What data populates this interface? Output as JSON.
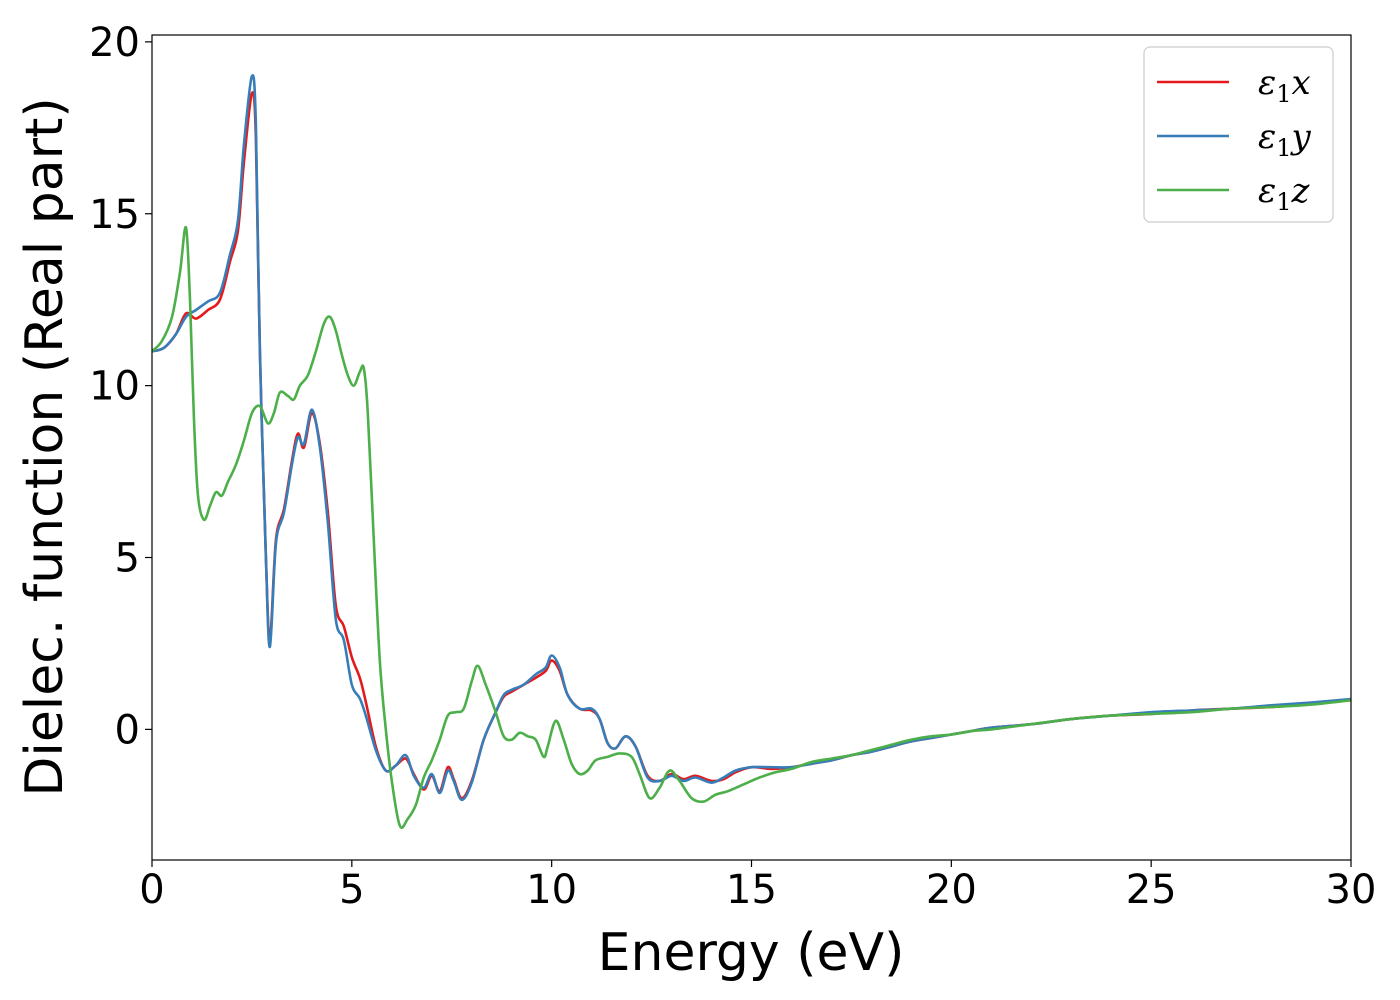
{
  "chart_data": {
    "type": "line",
    "title": "",
    "xlabel": "Energy (eV)",
    "ylabel": "Dielec. function (Real part)",
    "xlim": [
      0,
      30
    ],
    "ylim": [
      -3.8,
      20.2
    ],
    "xticks": [
      0,
      5,
      10,
      15,
      20,
      25,
      30
    ],
    "xtick_labels": [
      "0",
      "5",
      "10",
      "15",
      "20",
      "25",
      "30"
    ],
    "yticks": [
      0,
      5,
      10,
      15,
      20
    ],
    "ytick_labels": [
      "0",
      "5",
      "10",
      "15",
      "20"
    ],
    "grid": false,
    "legend_position": "top-right",
    "series": [
      {
        "name": "ε1x",
        "legend_base": "ε",
        "legend_sub": "1",
        "legend_var": "x",
        "color": "#e41a1c",
        "points": [
          [
            0,
            11
          ],
          [
            0.3,
            11.1
          ],
          [
            0.6,
            11.5
          ],
          [
            0.85,
            12.1
          ],
          [
            1.1,
            11.95
          ],
          [
            1.4,
            12.2
          ],
          [
            1.7,
            12.5
          ],
          [
            1.95,
            13.6
          ],
          [
            2.15,
            14.5
          ],
          [
            2.3,
            16.5
          ],
          [
            2.5,
            18.5
          ],
          [
            2.6,
            17.2
          ],
          [
            2.7,
            11
          ],
          [
            2.85,
            5
          ],
          [
            2.95,
            2.6
          ],
          [
            3.1,
            5.5
          ],
          [
            3.3,
            6.4
          ],
          [
            3.5,
            7.8
          ],
          [
            3.65,
            8.6
          ],
          [
            3.8,
            8.2
          ],
          [
            4.0,
            9.2
          ],
          [
            4.2,
            8.3
          ],
          [
            4.4,
            6.3
          ],
          [
            4.6,
            3.6
          ],
          [
            4.8,
            3.0
          ],
          [
            5.0,
            2.1
          ],
          [
            5.2,
            1.5
          ],
          [
            5.35,
            0.8
          ],
          [
            5.6,
            -0.5
          ],
          [
            5.85,
            -1.2
          ],
          [
            6.1,
            -1.05
          ],
          [
            6.35,
            -0.85
          ],
          [
            6.55,
            -1.3
          ],
          [
            6.8,
            -1.75
          ],
          [
            7.0,
            -1.35
          ],
          [
            7.2,
            -1.8
          ],
          [
            7.4,
            -1.1
          ],
          [
            7.55,
            -1.45
          ],
          [
            7.75,
            -2.0
          ],
          [
            8.0,
            -1.5
          ],
          [
            8.3,
            -0.3
          ],
          [
            8.6,
            0.5
          ],
          [
            8.8,
            0.95
          ],
          [
            9.0,
            1.1
          ],
          [
            9.3,
            1.3
          ],
          [
            9.6,
            1.5
          ],
          [
            9.85,
            1.7
          ],
          [
            10.0,
            2.0
          ],
          [
            10.2,
            1.7
          ],
          [
            10.4,
            1.0
          ],
          [
            10.7,
            0.6
          ],
          [
            11.0,
            0.55
          ],
          [
            11.2,
            0.3
          ],
          [
            11.4,
            -0.4
          ],
          [
            11.6,
            -0.55
          ],
          [
            11.85,
            -0.2
          ],
          [
            12.1,
            -0.5
          ],
          [
            12.4,
            -1.35
          ],
          [
            12.7,
            -1.5
          ],
          [
            13.0,
            -1.3
          ],
          [
            13.3,
            -1.45
          ],
          [
            13.6,
            -1.35
          ],
          [
            14.0,
            -1.5
          ],
          [
            14.3,
            -1.45
          ],
          [
            14.6,
            -1.25
          ],
          [
            15.0,
            -1.1
          ],
          [
            15.5,
            -1.15
          ],
          [
            16.0,
            -1.1
          ],
          [
            16.5,
            -1.0
          ],
          [
            17.0,
            -0.9
          ],
          [
            17.5,
            -0.75
          ],
          [
            18.0,
            -0.65
          ],
          [
            18.5,
            -0.5
          ],
          [
            19.0,
            -0.35
          ],
          [
            19.5,
            -0.25
          ],
          [
            20.0,
            -0.15
          ],
          [
            20.5,
            -0.05
          ],
          [
            21.0,
            0.05
          ],
          [
            22.0,
            0.15
          ],
          [
            23.0,
            0.3
          ],
          [
            24.0,
            0.4
          ],
          [
            25.0,
            0.45
          ],
          [
            26.0,
            0.55
          ],
          [
            27.0,
            0.6
          ],
          [
            28.0,
            0.65
          ],
          [
            29.0,
            0.75
          ],
          [
            30.0,
            0.85
          ]
        ]
      },
      {
        "name": "ε1y",
        "legend_base": "ε",
        "legend_sub": "1",
        "legend_var": "y",
        "color": "#377eb8",
        "points": [
          [
            0,
            11
          ],
          [
            0.3,
            11.1
          ],
          [
            0.6,
            11.5
          ],
          [
            0.85,
            12.0
          ],
          [
            1.1,
            12.2
          ],
          [
            1.4,
            12.45
          ],
          [
            1.7,
            12.7
          ],
          [
            1.95,
            13.8
          ],
          [
            2.15,
            14.8
          ],
          [
            2.3,
            17.0
          ],
          [
            2.5,
            19.0
          ],
          [
            2.6,
            17.6
          ],
          [
            2.7,
            11
          ],
          [
            2.85,
            5
          ],
          [
            2.95,
            2.4
          ],
          [
            3.1,
            5.4
          ],
          [
            3.3,
            6.3
          ],
          [
            3.5,
            7.7
          ],
          [
            3.65,
            8.5
          ],
          [
            3.8,
            8.3
          ],
          [
            4.0,
            9.3
          ],
          [
            4.2,
            8.2
          ],
          [
            4.4,
            6.0
          ],
          [
            4.6,
            3.2
          ],
          [
            4.8,
            2.6
          ],
          [
            5.0,
            1.3
          ],
          [
            5.2,
            0.9
          ],
          [
            5.35,
            0.4
          ],
          [
            5.6,
            -0.6
          ],
          [
            5.85,
            -1.2
          ],
          [
            6.1,
            -1.05
          ],
          [
            6.35,
            -0.75
          ],
          [
            6.55,
            -1.35
          ],
          [
            6.8,
            -1.7
          ],
          [
            7.0,
            -1.3
          ],
          [
            7.2,
            -1.85
          ],
          [
            7.4,
            -1.2
          ],
          [
            7.55,
            -1.5
          ],
          [
            7.75,
            -2.05
          ],
          [
            8.0,
            -1.55
          ],
          [
            8.3,
            -0.3
          ],
          [
            8.6,
            0.5
          ],
          [
            8.8,
            1.0
          ],
          [
            9.0,
            1.15
          ],
          [
            9.3,
            1.3
          ],
          [
            9.6,
            1.6
          ],
          [
            9.85,
            1.8
          ],
          [
            10.0,
            2.15
          ],
          [
            10.2,
            1.8
          ],
          [
            10.4,
            1.0
          ],
          [
            10.7,
            0.6
          ],
          [
            11.0,
            0.6
          ],
          [
            11.2,
            0.3
          ],
          [
            11.4,
            -0.4
          ],
          [
            11.6,
            -0.55
          ],
          [
            11.85,
            -0.2
          ],
          [
            12.1,
            -0.5
          ],
          [
            12.4,
            -1.4
          ],
          [
            12.7,
            -1.5
          ],
          [
            13.0,
            -1.35
          ],
          [
            13.3,
            -1.5
          ],
          [
            13.6,
            -1.4
          ],
          [
            14.0,
            -1.55
          ],
          [
            14.3,
            -1.4
          ],
          [
            14.6,
            -1.2
          ],
          [
            15.0,
            -1.1
          ],
          [
            15.5,
            -1.1
          ],
          [
            16.0,
            -1.1
          ],
          [
            16.5,
            -1.0
          ],
          [
            17.0,
            -0.9
          ],
          [
            17.5,
            -0.75
          ],
          [
            18.0,
            -0.65
          ],
          [
            18.5,
            -0.5
          ],
          [
            19.0,
            -0.35
          ],
          [
            19.5,
            -0.25
          ],
          [
            20.0,
            -0.15
          ],
          [
            20.5,
            -0.05
          ],
          [
            21.0,
            0.05
          ],
          [
            22.0,
            0.15
          ],
          [
            23.0,
            0.3
          ],
          [
            24.0,
            0.4
          ],
          [
            25.0,
            0.5
          ],
          [
            26.0,
            0.55
          ],
          [
            27.0,
            0.6
          ],
          [
            28.0,
            0.7
          ],
          [
            29.0,
            0.78
          ],
          [
            30.0,
            0.88
          ]
        ]
      },
      {
        "name": "ε1z",
        "legend_base": "ε",
        "legend_sub": "1",
        "legend_var": "z",
        "color": "#4daf4a",
        "points": [
          [
            0,
            11
          ],
          [
            0.25,
            11.3
          ],
          [
            0.5,
            12.0
          ],
          [
            0.7,
            13.3
          ],
          [
            0.85,
            14.6
          ],
          [
            0.95,
            12.5
          ],
          [
            1.05,
            9.0
          ],
          [
            1.15,
            6.8
          ],
          [
            1.3,
            6.1
          ],
          [
            1.45,
            6.5
          ],
          [
            1.6,
            6.9
          ],
          [
            1.75,
            6.8
          ],
          [
            1.9,
            7.2
          ],
          [
            2.1,
            7.7
          ],
          [
            2.3,
            8.4
          ],
          [
            2.5,
            9.2
          ],
          [
            2.7,
            9.4
          ],
          [
            2.9,
            8.9
          ],
          [
            3.05,
            9.2
          ],
          [
            3.2,
            9.8
          ],
          [
            3.4,
            9.7
          ],
          [
            3.55,
            9.6
          ],
          [
            3.7,
            10.0
          ],
          [
            3.9,
            10.3
          ],
          [
            4.1,
            11.0
          ],
          [
            4.3,
            11.8
          ],
          [
            4.45,
            12.0
          ],
          [
            4.6,
            11.6
          ],
          [
            4.75,
            10.9
          ],
          [
            4.9,
            10.3
          ],
          [
            5.05,
            10.0
          ],
          [
            5.2,
            10.4
          ],
          [
            5.3,
            10.5
          ],
          [
            5.4,
            9.2
          ],
          [
            5.55,
            5.5
          ],
          [
            5.7,
            2.0
          ],
          [
            5.85,
            0.0
          ],
          [
            6.0,
            -1.5
          ],
          [
            6.2,
            -2.8
          ],
          [
            6.4,
            -2.6
          ],
          [
            6.6,
            -2.2
          ],
          [
            6.8,
            -1.4
          ],
          [
            7.0,
            -0.9
          ],
          [
            7.2,
            -0.3
          ],
          [
            7.4,
            0.4
          ],
          [
            7.6,
            0.5
          ],
          [
            7.8,
            0.6
          ],
          [
            8.0,
            1.4
          ],
          [
            8.15,
            1.85
          ],
          [
            8.35,
            1.3
          ],
          [
            8.6,
            0.5
          ],
          [
            8.8,
            -0.2
          ],
          [
            9.0,
            -0.3
          ],
          [
            9.2,
            -0.1
          ],
          [
            9.4,
            -0.2
          ],
          [
            9.6,
            -0.3
          ],
          [
            9.8,
            -0.8
          ],
          [
            9.9,
            -0.5
          ],
          [
            10.1,
            0.25
          ],
          [
            10.3,
            -0.3
          ],
          [
            10.5,
            -1.0
          ],
          [
            10.7,
            -1.3
          ],
          [
            10.9,
            -1.2
          ],
          [
            11.1,
            -0.9
          ],
          [
            11.4,
            -0.8
          ],
          [
            11.7,
            -0.7
          ],
          [
            12.0,
            -0.8
          ],
          [
            12.2,
            -1.3
          ],
          [
            12.45,
            -2.0
          ],
          [
            12.7,
            -1.7
          ],
          [
            12.95,
            -1.2
          ],
          [
            13.2,
            -1.5
          ],
          [
            13.5,
            -2.0
          ],
          [
            13.8,
            -2.1
          ],
          [
            14.1,
            -1.9
          ],
          [
            14.4,
            -1.8
          ],
          [
            14.8,
            -1.6
          ],
          [
            15.2,
            -1.4
          ],
          [
            15.6,
            -1.25
          ],
          [
            16.0,
            -1.15
          ],
          [
            16.5,
            -0.95
          ],
          [
            17.0,
            -0.85
          ],
          [
            17.5,
            -0.75
          ],
          [
            18.0,
            -0.6
          ],
          [
            18.5,
            -0.45
          ],
          [
            19.0,
            -0.3
          ],
          [
            19.5,
            -0.2
          ],
          [
            20.0,
            -0.15
          ],
          [
            20.5,
            -0.05
          ],
          [
            21.0,
            0.0
          ],
          [
            22.0,
            0.15
          ],
          [
            23.0,
            0.3
          ],
          [
            24.0,
            0.4
          ],
          [
            25.0,
            0.45
          ],
          [
            26.0,
            0.5
          ],
          [
            27.0,
            0.6
          ],
          [
            28.0,
            0.65
          ],
          [
            29.0,
            0.72
          ],
          [
            30.0,
            0.85
          ]
        ]
      }
    ]
  }
}
